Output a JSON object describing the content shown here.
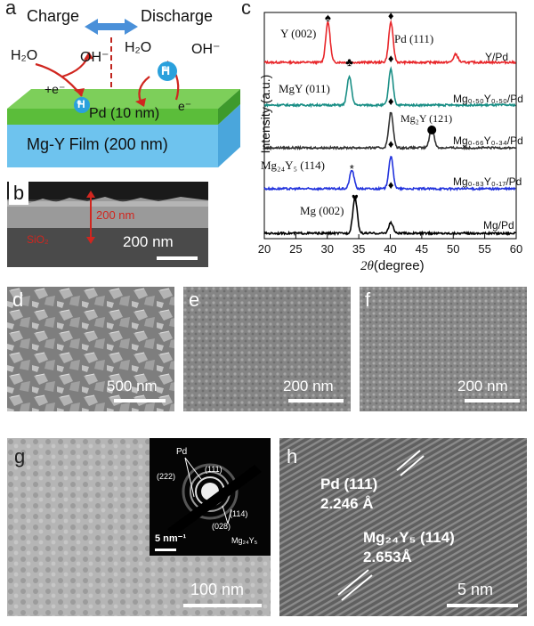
{
  "figure": {
    "panel_a": {
      "letter": "a",
      "charge": "Charge",
      "discharge": "Discharge",
      "h2o_left": "H₂O",
      "oh_left": "OH⁻",
      "h2o_right": "H₂O",
      "oh_right": "OH⁻",
      "plus_e": "+e⁻",
      "e_minus": "e⁻",
      "h_atom": "H",
      "pd_layer": "Pd (10 nm)",
      "mgy_layer": "Mg-Y Film (200 nm)",
      "colors": {
        "pd": "#3db54a",
        "film": "#5ab0e0",
        "arrow": "#d0261f",
        "h_atom": "#2aa0dc"
      }
    },
    "panel_b": {
      "letter": "b",
      "thickness": "200 nm",
      "substrate": "SiO₂",
      "scale": "200 nm"
    },
    "panel_c": {
      "letter": "c",
      "ylabel": "Intensity (a.u.)",
      "xlabel_var": "2θ",
      "xlabel_unit": "(degree)",
      "xticks": [
        "20",
        "25",
        "30",
        "35",
        "40",
        "45",
        "50",
        "55",
        "60"
      ],
      "curves": [
        {
          "name": "Y/Pd",
          "color": "#e8262a"
        },
        {
          "name": "Mg₀.₅₀Y₀.₅₀/Pd",
          "color": "#1a8f86"
        },
        {
          "name": "Mg₀.₆₆Y₀.₃₄/Pd",
          "color": "#333333"
        },
        {
          "name": "Mg₀.₈₃Y₀.₁₇/Pd",
          "color": "#2233dd"
        },
        {
          "name": "Mg/Pd",
          "color": "#000000"
        }
      ],
      "peak_labels": {
        "y002": "Y (002)",
        "pd111": "Pd (111)",
        "mgy011": "MgY (011)",
        "mg2y121": "Mg₂Y (121)",
        "mg24y5": "Mg₂₄Y₅ (114)",
        "mg002": "Mg (002)"
      }
    },
    "panel_d": {
      "letter": "d",
      "scale": "500 nm"
    },
    "panel_e": {
      "letter": "e",
      "scale": "200 nm"
    },
    "panel_f": {
      "letter": "f",
      "scale": "200 nm"
    },
    "panel_g": {
      "letter": "g",
      "scale": "100 nm",
      "inset": {
        "pd": "Pd",
        "r222": "(222)",
        "r111": "(111)",
        "r114": "(114)",
        "r028": "(028)",
        "phase": "Mg₂₄Y₅",
        "scale": "5 nm⁻¹"
      }
    },
    "panel_h": {
      "letter": "h",
      "pd_plane": "Pd (111)",
      "pd_d": "2.246 Å",
      "mg_plane": "Mg₂₄Y₅ (114)",
      "mg_d": "2.653Å",
      "scale": "5 nm"
    }
  },
  "chart_data": {
    "type": "line",
    "title": "",
    "xlabel": "2θ (degree)",
    "ylabel": "Intensity (a.u.)",
    "xlim": [
      20,
      60
    ],
    "series": [
      {
        "name": "Y/Pd",
        "peaks": [
          {
            "x": 30.1,
            "h": 1.0
          },
          {
            "x": 40.1,
            "h": 1.0
          },
          {
            "x": 50.4,
            "h": 0.2
          }
        ]
      },
      {
        "name": "Mg0.50Y0.50/Pd",
        "peaks": [
          {
            "x": 33.5,
            "h": 0.8
          },
          {
            "x": 40.1,
            "h": 1.0
          }
        ]
      },
      {
        "name": "Mg0.66Y0.34/Pd",
        "peaks": [
          {
            "x": 40.1,
            "h": 1.0
          },
          {
            "x": 46.6,
            "h": 0.6
          }
        ]
      },
      {
        "name": "Mg0.83Y0.17/Pd",
        "peaks": [
          {
            "x": 33.9,
            "h": 0.55
          },
          {
            "x": 40.1,
            "h": 0.95
          }
        ]
      },
      {
        "name": "Mg/Pd",
        "peaks": [
          {
            "x": 34.4,
            "h": 1.0
          },
          {
            "x": 40.1,
            "h": 0.3
          }
        ]
      }
    ]
  }
}
